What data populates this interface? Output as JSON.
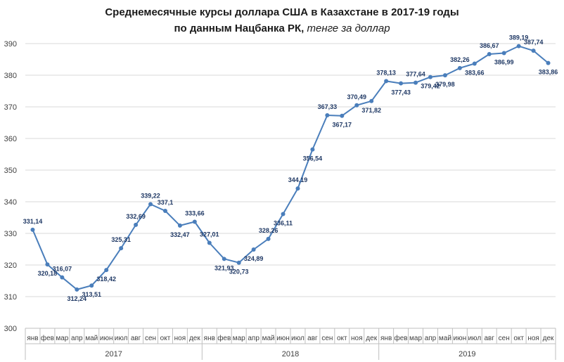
{
  "chart_data": {
    "type": "line",
    "title_line1": "Среднемесячные  курсы доллара США в Казахстане в 2017-19 годы",
    "title_line2_bold": "по данным  Нацбанка  РК, ",
    "title_line2_italic": "тенге за доллар",
    "ylim": [
      300,
      390
    ],
    "yticks": [
      "300",
      "310",
      "320",
      "330",
      "340",
      "350",
      "360",
      "370",
      "380",
      "390"
    ],
    "months": [
      "янв",
      "фев",
      "мар",
      "апр",
      "май",
      "июн",
      "июл",
      "авг",
      "сен",
      "окт",
      "ноя",
      "дек"
    ],
    "years": [
      "2017",
      "2018",
      "2019"
    ],
    "grid": "horizontal",
    "line_color": "#4a7ebb",
    "values": [
      331.14,
      320.18,
      316.07,
      312.24,
      313.51,
      318.42,
      325.31,
      332.69,
      339.22,
      337.1,
      332.47,
      333.66,
      327.01,
      321.93,
      320.73,
      324.89,
      328.26,
      336.11,
      344.19,
      356.54,
      367.33,
      367.17,
      370.49,
      371.82,
      378.13,
      377.43,
      377.64,
      379.42,
      379.98,
      382.26,
      383.66,
      386.67,
      386.99,
      389.19,
      387.74,
      383.86
    ],
    "labels": [
      "331,14",
      "320,18",
      "316,07",
      "312,24",
      "313,51",
      "318,42",
      "325,31",
      "332,69",
      "339,22",
      "337,1",
      "332,47",
      "333,66",
      "327,01",
      "321,93",
      "320,73",
      "324,89",
      "328,26",
      "336,11",
      "344,19",
      "356,54",
      "367,33",
      "367,17",
      "370,49",
      "371,82",
      "378,13",
      "377,43",
      "377,64",
      "379,42",
      "379,98",
      "382,26",
      "383,66",
      "386,67",
      "386,99",
      "389,19",
      "387,74",
      "383,86"
    ]
  }
}
